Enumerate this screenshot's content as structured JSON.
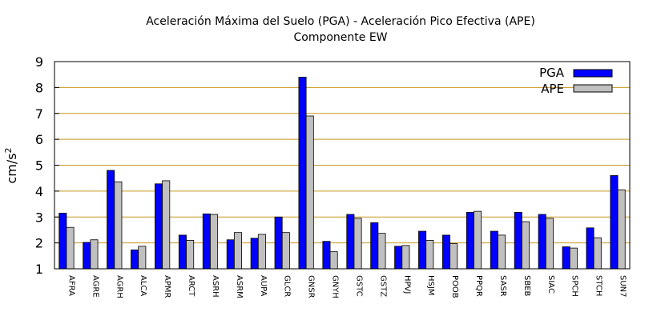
{
  "chart_data": {
    "type": "bar",
    "title": "Aceleración Máxima del Suelo (PGA) -  Aceleración Pico Efectiva (APE)",
    "subtitle": "Componente EW",
    "xlabel": "",
    "ylabel": "cm/s",
    "ylabel_sup": "2",
    "ylim": [
      1,
      9
    ],
    "yticks": [
      1,
      2,
      3,
      4,
      5,
      6,
      7,
      8,
      9
    ],
    "grid": "horizontal",
    "legend_position": "top-right",
    "categories": [
      "AFRA",
      "AGRE",
      "AGRH",
      "ALCA",
      "APMR",
      "ARCT",
      "ASRH",
      "ASRM",
      "AUPA",
      "GLCR",
      "GNSR",
      "GNYH",
      "GSTC",
      "GSTZ",
      "HPVJ",
      "HSJM",
      "POOB",
      "PPQR",
      "SASR",
      "SBEB",
      "SIAC",
      "SPCH",
      "STCH",
      "SUN7"
    ],
    "series": [
      {
        "name": "PGA",
        "color": "#0000ff",
        "values": [
          3.15,
          2.02,
          4.8,
          1.73,
          4.28,
          2.3,
          3.12,
          2.12,
          2.18,
          3.0,
          8.4,
          2.06,
          3.1,
          2.78,
          1.87,
          2.45,
          2.3,
          3.18,
          2.45,
          3.18,
          3.1,
          1.85,
          2.58,
          4.6
        ]
      },
      {
        "name": "APE",
        "color": "#c0c0c0",
        "values": [
          2.6,
          2.12,
          4.36,
          1.87,
          4.4,
          2.1,
          3.1,
          2.4,
          2.33,
          2.4,
          6.9,
          1.66,
          2.95,
          2.37,
          1.9,
          2.1,
          1.97,
          3.22,
          2.3,
          2.82,
          2.95,
          1.8,
          2.2,
          4.05
        ]
      }
    ]
  },
  "colors": {
    "grid": "#c8961e",
    "axis": "#000000",
    "bar_outline": "#000000"
  }
}
